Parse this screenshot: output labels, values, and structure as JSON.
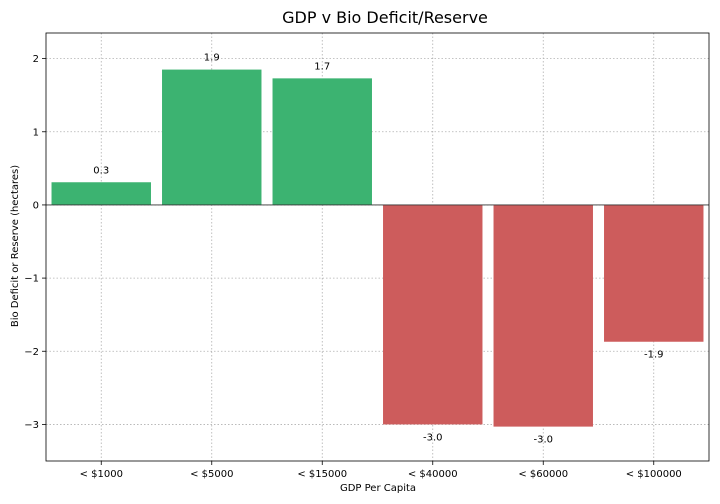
{
  "chart_data": {
    "type": "bar",
    "title": "GDP v Bio Deficit/Reserve",
    "xlabel": "GDP Per Capita",
    "ylabel": "Bio Deficit or Reserve (hectares)",
    "categories": [
      "< $1000",
      "< $5000",
      "< $15000",
      "< $40000",
      "< $60000",
      "< $100000"
    ],
    "values": [
      0.31,
      1.85,
      1.73,
      -3.0,
      -3.03,
      -1.87
    ],
    "value_labels": [
      "0.3",
      "1.9",
      "1.7",
      "-3.0",
      "-3.0",
      "-1.9"
    ],
    "ylim": [
      -3.5,
      2.35
    ],
    "yticks": [
      -3,
      -2,
      -1,
      0,
      1,
      2
    ],
    "ytick_labels": [
      "−3",
      "−2",
      "−1",
      "0",
      "1",
      "2"
    ],
    "grid": true,
    "colors": {
      "positive": "#3cb371",
      "negative": "#cd5c5c"
    }
  }
}
